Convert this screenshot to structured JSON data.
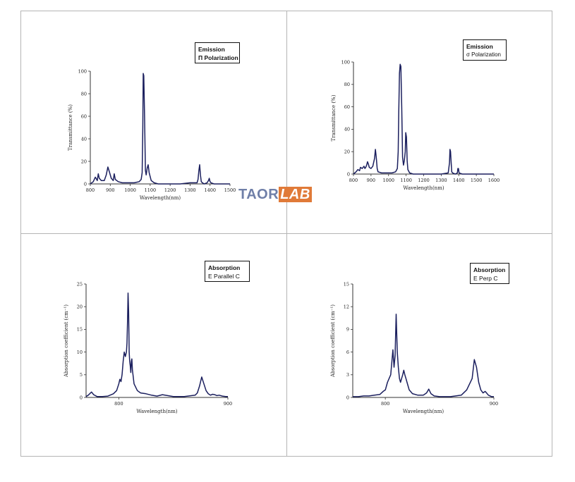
{
  "colors": {
    "line": "#1b1f5e",
    "axis": "#333333",
    "grid_border": "#b5b5b5",
    "watermark_gray": "#6f7fa8",
    "watermark_orange": "#e07a38"
  },
  "watermark": {
    "part1": "TAOR",
    "part2": "LAB"
  },
  "chart_data": [
    {
      "type": "line",
      "legend": [
        "Emission",
        "Π Polarization"
      ],
      "xlabel": "Wavelength(nm)",
      "ylabel": "Transmittance (%)",
      "xlim": [
        800,
        1500
      ],
      "ylim": [
        0,
        100
      ],
      "xticks": [
        800,
        900,
        1000,
        1100,
        1200,
        1300,
        1400,
        1500
      ],
      "yticks": [
        0,
        20,
        40,
        60,
        80,
        100
      ],
      "series": [
        {
          "x": [
            800,
            815,
            825,
            835,
            840,
            845,
            855,
            870,
            880,
            888,
            895,
            905,
            915,
            920,
            925,
            940,
            960,
            990,
            1020,
            1045,
            1055,
            1060,
            1063,
            1065,
            1068,
            1072,
            1076,
            1080,
            1085,
            1090,
            1095,
            1105,
            1120,
            1140,
            1180,
            1250,
            1300,
            1335,
            1340,
            1344,
            1348,
            1352,
            1356,
            1362,
            1370,
            1385,
            1392,
            1396,
            1400,
            1405,
            1420,
            1450,
            1500
          ],
          "y": [
            0,
            2,
            6,
            3,
            9,
            5,
            3,
            3,
            8,
            15,
            11,
            5,
            3,
            9,
            4,
            2,
            1,
            1,
            1,
            2,
            4,
            10,
            50,
            98,
            96,
            60,
            12,
            8,
            14,
            17,
            10,
            3,
            1,
            0,
            0,
            0,
            1,
            1,
            4,
            12,
            17,
            8,
            2,
            1,
            0,
            1,
            3,
            5,
            2,
            1,
            0,
            0,
            0
          ]
        }
      ]
    },
    {
      "type": "line",
      "legend": [
        "Emission",
        "σ Polarization"
      ],
      "xlabel": "Wavelength(nm)",
      "ylabel": "Transmittance (%)",
      "xlim": [
        800,
        1600
      ],
      "ylim": [
        0,
        100
      ],
      "xticks": [
        800,
        900,
        1000,
        1100,
        1200,
        1300,
        1400,
        1500,
        1600
      ],
      "yticks": [
        0,
        20,
        40,
        60,
        80,
        100
      ],
      "series": [
        {
          "x": [
            800,
            815,
            825,
            835,
            840,
            850,
            860,
            865,
            870,
            875,
            880,
            885,
            890,
            900,
            910,
            920,
            925,
            930,
            935,
            940,
            960,
            990,
            1020,
            1040,
            1050,
            1055,
            1058,
            1062,
            1066,
            1070,
            1075,
            1080,
            1085,
            1090,
            1095,
            1098,
            1102,
            1106,
            1110,
            1120,
            1140,
            1200,
            1300,
            1340,
            1347,
            1350,
            1353,
            1356,
            1360,
            1365,
            1380,
            1392,
            1395,
            1398,
            1402,
            1420,
            1500,
            1600
          ],
          "y": [
            0,
            2,
            4,
            3,
            6,
            5,
            7,
            5,
            6,
            8,
            11,
            9,
            6,
            5,
            7,
            14,
            22,
            15,
            5,
            2,
            1,
            1,
            1,
            2,
            5,
            20,
            55,
            90,
            98,
            96,
            60,
            15,
            8,
            12,
            20,
            37,
            33,
            12,
            4,
            1,
            0,
            0,
            0,
            1,
            10,
            22,
            20,
            12,
            2,
            1,
            0,
            1,
            5,
            5,
            1,
            0,
            0,
            0
          ]
        }
      ]
    },
    {
      "type": "line",
      "legend": [
        "Absorption",
        "E Parallel C"
      ],
      "xlabel": "Wavelength(nm)",
      "ylabel": "Absorption coefficient (cm⁻¹)",
      "xlim": [
        770,
        900
      ],
      "ylim": [
        0,
        25
      ],
      "xticks": [
        800,
        900
      ],
      "yticks": [
        0,
        5,
        10,
        15,
        20,
        25
      ],
      "series": [
        {
          "x": [
            770,
            772,
            775,
            777,
            780,
            785,
            790,
            795,
            798,
            800,
            801,
            802,
            803,
            804,
            805,
            806,
            806.5,
            807,
            807.5,
            808,
            808.5,
            809,
            809.5,
            810,
            810.5,
            811,
            811.5,
            812,
            812.5,
            813,
            814,
            815,
            816,
            817,
            820,
            825,
            830,
            835,
            840,
            850,
            860,
            870,
            872,
            874,
            876,
            878,
            880,
            882,
            884,
            886,
            888,
            890,
            892,
            895,
            898,
            900
          ],
          "y": [
            0.2,
            0.5,
            1.2,
            0.6,
            0.2,
            0.2,
            0.3,
            0.8,
            1.5,
            3,
            4,
            3.5,
            5,
            8,
            10,
            9,
            9.5,
            10,
            12,
            17,
            23,
            19,
            10,
            8,
            7,
            5.5,
            8,
            8.5,
            6,
            5,
            3,
            2.5,
            2,
            1.5,
            1,
            0.8,
            0.5,
            0.3,
            0.6,
            0.2,
            0.2,
            0.5,
            1,
            2.5,
            4.5,
            3,
            1.5,
            0.8,
            0.5,
            0.7,
            0.6,
            0.4,
            0.5,
            0.3,
            0.2,
            0.2
          ]
        }
      ]
    },
    {
      "type": "line",
      "legend": [
        "Absorption",
        "E Perp  C"
      ],
      "xlabel": "Wavelength(nm)",
      "ylabel": "Absorption coefficient (cm⁻¹)",
      "xlim": [
        770,
        900
      ],
      "ylim": [
        0,
        15
      ],
      "xticks": [
        800,
        900
      ],
      "yticks": [
        0,
        3,
        6,
        9,
        12,
        15
      ],
      "series": [
        {
          "x": [
            770,
            775,
            780,
            785,
            790,
            795,
            798,
            800,
            802,
            805,
            807,
            808,
            809,
            810,
            811,
            812,
            813,
            814,
            815,
            816,
            817,
            818,
            819,
            820,
            822,
            825,
            830,
            835,
            838,
            840,
            842,
            845,
            850,
            860,
            870,
            875,
            880,
            882,
            884,
            886,
            888,
            890,
            892,
            895,
            898,
            900
          ],
          "y": [
            0.1,
            0.1,
            0.2,
            0.2,
            0.3,
            0.4,
            0.8,
            1,
            2,
            3,
            6.3,
            4,
            5.5,
            11,
            6,
            4,
            2.5,
            2,
            2.5,
            3,
            3.6,
            3,
            2.5,
            2,
            1,
            0.5,
            0.3,
            0.3,
            0.6,
            1.1,
            0.5,
            0.2,
            0.1,
            0.1,
            0.3,
            1,
            2.5,
            5,
            4,
            2,
            1,
            0.6,
            0.8,
            0.3,
            0.1,
            0.1
          ]
        }
      ]
    }
  ]
}
